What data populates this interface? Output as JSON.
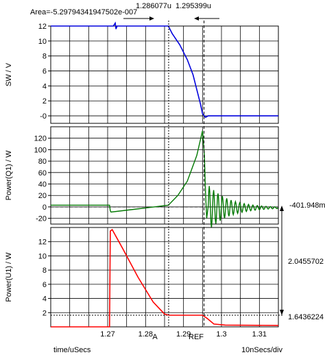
{
  "header": {
    "area_label": "Area=-5.29794341947502e-007",
    "cursor_a_value": "1.286077u",
    "cursor_ref_value": "1.295399u"
  },
  "footer": {
    "x_axis_label": "time/uSecs",
    "x_scale_label": "10nSecs/div"
  },
  "cursors": {
    "a_label": "A",
    "ref_label": "REF"
  },
  "measurements": {
    "power_q1_ref_value": "-401.948m",
    "delta_value": "2.0455702",
    "power_u1_cursor_value": "1.6436224"
  },
  "colors": {
    "sw": "#0000dd",
    "power_q1": "#007700",
    "power_u1": "#ff0000",
    "grid": "#000000"
  },
  "chart_data": [
    {
      "type": "line",
      "ylabel": "SW / V",
      "ylim": [
        -1,
        12
      ],
      "yticks": [
        "12",
        "10",
        "8",
        "6",
        "4",
        "2",
        "-0"
      ],
      "grid": true,
      "series": [
        {
          "values": [
            [
              1.255,
              12
            ],
            [
              1.2715,
              12
            ],
            [
              1.272,
              12.4
            ],
            [
              1.2722,
              11.6
            ],
            [
              1.2725,
              12
            ],
            [
              1.286,
              12
            ],
            [
              1.287,
              11
            ],
            [
              1.289,
              9.5
            ],
            [
              1.291,
              7.5
            ],
            [
              1.2925,
              5.5
            ],
            [
              1.2935,
              3.5
            ],
            [
              1.2945,
              1.5
            ],
            [
              1.295,
              0.3
            ],
            [
              1.2958,
              -0.2
            ],
            [
              1.2965,
              0
            ],
            [
              1.315,
              0
            ]
          ]
        }
      ]
    },
    {
      "type": "line",
      "ylabel": "Power(Q1) / W",
      "ylim": [
        -30,
        140
      ],
      "yticks": [
        "120",
        "100",
        "80",
        "60",
        "40",
        "20",
        "0",
        "-20"
      ],
      "grid": true,
      "series": [
        {
          "values": [
            [
              1.255,
              3
            ],
            [
              1.2705,
              3
            ],
            [
              1.2707,
              -7
            ],
            [
              1.2709,
              -9
            ],
            [
              1.276,
              -5
            ],
            [
              1.281,
              -1
            ],
            [
              1.286,
              3
            ],
            [
              1.2885,
              20
            ],
            [
              1.291,
              45
            ],
            [
              1.2935,
              90
            ],
            [
              1.295,
              133
            ],
            [
              1.2955,
              90
            ],
            [
              1.2958,
              25
            ],
            [
              1.2961,
              -20
            ],
            [
              1.2965,
              0
            ]
          ]
        }
      ],
      "annotations": [
        "dashed zero reference line",
        "decaying oscillation after REF cursor"
      ]
    },
    {
      "type": "line",
      "xlabel": "time/uSecs",
      "ylabel": "Power(U1) / W",
      "ylim": [
        0,
        14
      ],
      "yticks": [
        "12",
        "10",
        "8",
        "6",
        "4",
        "2"
      ],
      "xticks": [
        "1.27",
        "1.28",
        "1.29",
        "1.3",
        "1.31"
      ],
      "xlim": [
        1.255,
        1.315
      ],
      "grid": true,
      "series": [
        {
          "values": [
            [
              1.255,
              0
            ],
            [
              1.2705,
              0
            ],
            [
              1.2707,
              13.5
            ],
            [
              1.2712,
              13.7
            ],
            [
              1.274,
              11
            ],
            [
              1.278,
              7
            ],
            [
              1.282,
              3.5
            ],
            [
              1.285,
              1.8
            ],
            [
              1.2862,
              1.64
            ],
            [
              1.295,
              1.64
            ],
            [
              1.2962,
              1.2
            ],
            [
              1.298,
              0.4
            ],
            [
              1.301,
              0.25
            ],
            [
              1.315,
              0.2
            ]
          ]
        }
      ]
    }
  ]
}
